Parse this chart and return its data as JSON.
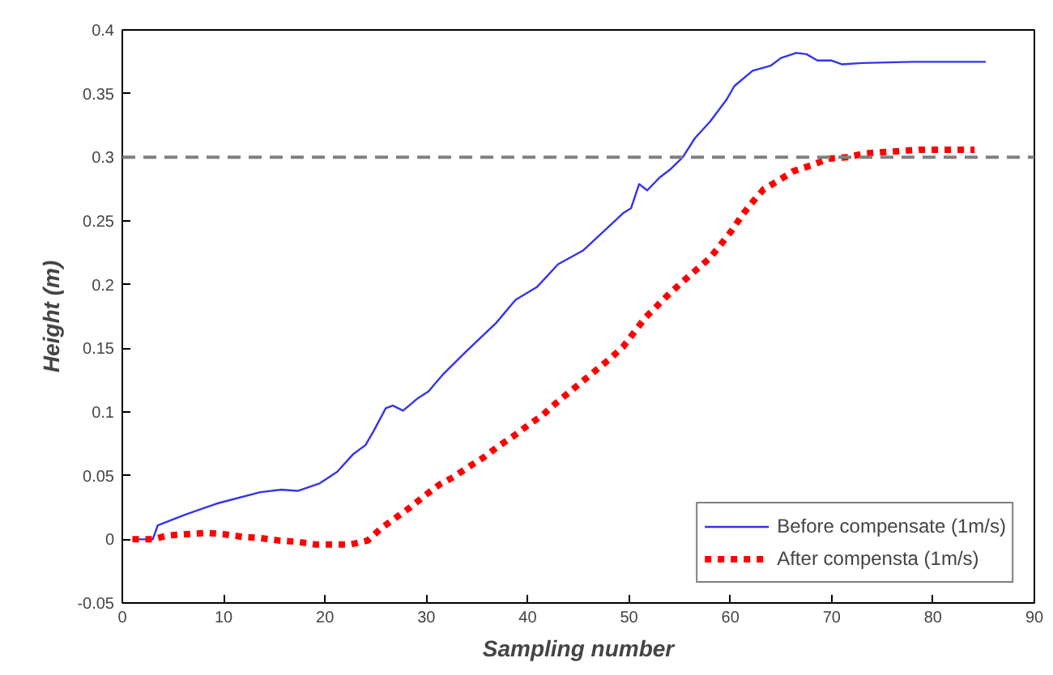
{
  "chart_data": {
    "type": "line",
    "xlabel": "Sampling number",
    "ylabel": "Height (m)",
    "xlim": [
      0,
      90
    ],
    "xticks": [
      0,
      10,
      20,
      30,
      40,
      50,
      60,
      70,
      80,
      90
    ],
    "ylim": [
      -0.05,
      0.4
    ],
    "yticks": [
      -0.05,
      0,
      0.05,
      0.1,
      0.15,
      0.2,
      0.25,
      0.3,
      0.35,
      0.4
    ],
    "grid": false,
    "legend": "bottom right",
    "marker": "none",
    "ref_lines": [
      {
        "axis": "y",
        "value": 0.3,
        "label": null,
        "color": "#808080",
        "line_style": "dashed"
      }
    ],
    "series": [
      {
        "name": "Before compensate (1m/s)",
        "color": "#3333ee",
        "line_style": "solid",
        "x": [
          1,
          3,
          3.5,
          6.1,
          9.3,
          13.6,
          15.7,
          17.3,
          19.5,
          21.2,
          22.8,
          24,
          24.8,
          26,
          26.7,
          27.7,
          29.2,
          30.2,
          31.7,
          34,
          36.9,
          38.8,
          40.9,
          43,
          45.5,
          47.8,
          49.4,
          50.2,
          51,
          51.8,
          53,
          54,
          55.3,
          56.5,
          58,
          59.6,
          60.4,
          62.2,
          64,
          65,
          66.5,
          67.5,
          68.6,
          70,
          71,
          73,
          78,
          85.2
        ],
        "values": [
          0,
          0,
          0.011,
          0.019,
          0.028,
          0.037,
          0.039,
          0.038,
          0.044,
          0.053,
          0.067,
          0.074,
          0.085,
          0.103,
          0.105,
          0.101,
          0.111,
          0.116,
          0.13,
          0.148,
          0.17,
          0.188,
          0.198,
          0.216,
          0.227,
          0.244,
          0.256,
          0.26,
          0.279,
          0.274,
          0.284,
          0.29,
          0.3,
          0.315,
          0.328,
          0.345,
          0.356,
          0.368,
          0.372,
          0.378,
          0.382,
          0.381,
          0.376,
          0.376,
          0.373,
          0.374,
          0.375,
          0.375
        ]
      },
      {
        "name": "After compensta (1m/s)",
        "color": "#ff0000",
        "line_style": "dotted",
        "x": [
          1,
          3,
          4.5,
          6.4,
          8.3,
          10,
          11.8,
          13.6,
          15.5,
          17.3,
          19,
          20.8,
          22.5,
          24.2,
          25.6,
          27,
          28.4,
          29.8,
          31.3,
          32.7,
          34.2,
          35.6,
          37.1,
          38.6,
          40.1,
          41.4,
          42.8,
          45.4,
          48,
          49.4,
          51.6,
          54,
          56.1,
          58,
          59,
          60.1,
          61.2,
          62.2,
          63.3,
          64.6,
          66.2,
          68.1,
          69.7,
          71.6,
          73.2,
          75,
          76.9,
          78.8,
          80.4,
          82.3,
          84.1
        ],
        "values": [
          0,
          0,
          0.003,
          0.004,
          0.005,
          0.004,
          0.002,
          0.001,
          -0.001,
          -0.002,
          -0.004,
          -0.004,
          -0.004,
          -0.001,
          0.009,
          0.017,
          0.025,
          0.034,
          0.043,
          0.049,
          0.057,
          0.064,
          0.073,
          0.081,
          0.09,
          0.097,
          0.107,
          0.124,
          0.141,
          0.151,
          0.174,
          0.193,
          0.208,
          0.221,
          0.231,
          0.242,
          0.255,
          0.265,
          0.275,
          0.281,
          0.289,
          0.294,
          0.299,
          0.3,
          0.303,
          0.304,
          0.305,
          0.306,
          0.306,
          0.306,
          0.306
        ]
      }
    ]
  }
}
